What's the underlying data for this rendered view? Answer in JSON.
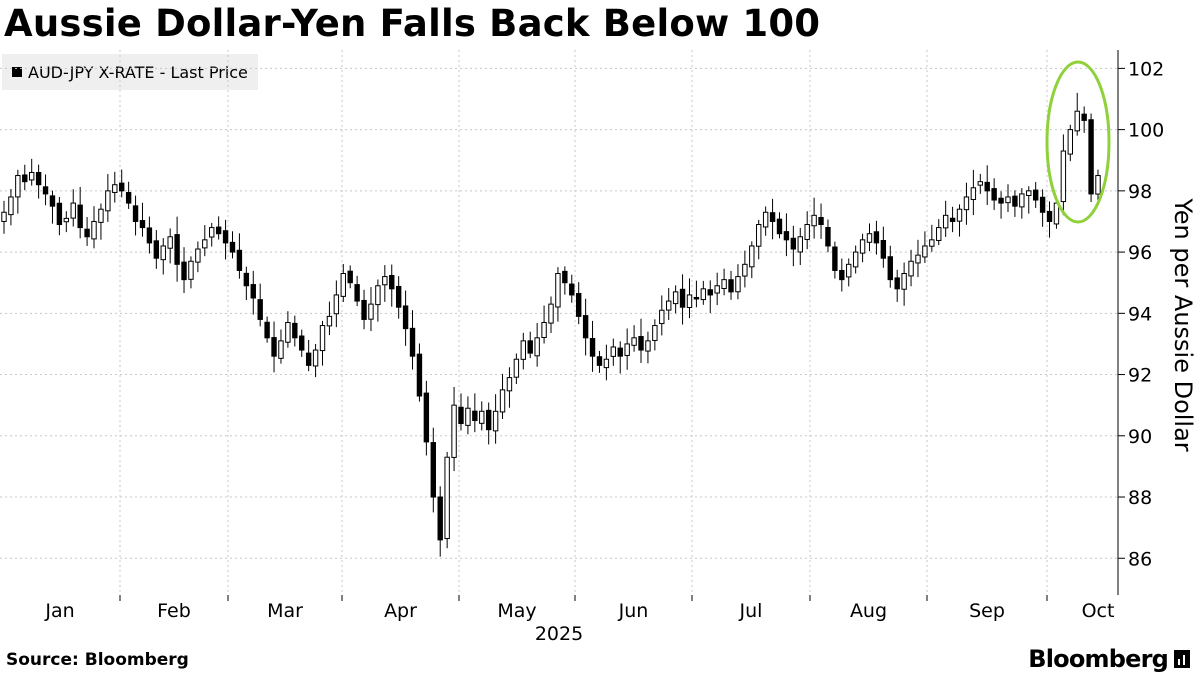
{
  "chart_data": {
    "type": "candlestick",
    "title": "Aussie Dollar-Yen Falls Back Below 100",
    "legend": [
      "AUD-JPY X-RATE - Last Price"
    ],
    "ylabel": "Yen per Aussie Dollar",
    "ylim": [
      84.8,
      102.6
    ],
    "yticks": [
      86,
      88,
      90,
      92,
      94,
      96,
      98,
      100,
      102
    ],
    "xticks": [
      "Jan",
      "Feb",
      "Mar",
      "Apr",
      "May",
      "Jun",
      "Jul",
      "Aug",
      "Sep",
      "Oct"
    ],
    "xsublabel": "2025",
    "grid": true,
    "axis_position": "right",
    "annotation": "green ellipse around late-September / early-October spike",
    "series_name": "AUD-JPY X-RATE - Last Price",
    "closes": [
      97.3,
      97.8,
      98.5,
      98.3,
      98.6,
      98.2,
      97.9,
      97.5,
      96.9,
      97.1,
      97.6,
      96.8,
      96.5,
      97.0,
      97.4,
      98.0,
      98.2,
      98.0,
      97.6,
      97.0,
      96.8,
      96.3,
      95.8,
      96.2,
      96.5,
      95.6,
      95.1,
      95.7,
      96.1,
      96.4,
      96.8,
      96.6,
      96.3,
      96.0,
      95.4,
      94.9,
      94.5,
      93.8,
      93.2,
      92.6,
      93.1,
      93.7,
      93.2,
      92.8,
      92.3,
      92.8,
      93.6,
      93.9,
      94.6,
      95.3,
      95.0,
      94.4,
      93.8,
      94.3,
      94.9,
      95.2,
      94.8,
      94.2,
      93.5,
      92.6,
      91.3,
      89.8,
      88.0,
      86.6,
      89.3,
      91.0,
      90.4,
      90.9,
      90.5,
      90.8,
      90.2,
      90.8,
      91.5,
      91.9,
      92.5,
      93.1,
      92.7,
      93.2,
      93.7,
      94.3,
      95.3,
      95.0,
      94.6,
      93.9,
      93.2,
      92.6,
      92.3,
      92.5,
      92.9,
      92.6,
      93.0,
      93.2,
      92.8,
      93.1,
      93.6,
      94.1,
      94.4,
      94.7,
      94.2,
      94.6,
      94.5,
      94.8,
      94.6,
      94.9,
      95.1,
      94.7,
      95.2,
      95.6,
      96.2,
      96.9,
      97.3,
      97.0,
      96.6,
      96.4,
      96.1,
      96.5,
      96.9,
      97.2,
      96.9,
      96.2,
      95.4,
      95.1,
      95.6,
      96.0,
      96.4,
      96.6,
      96.3,
      95.8,
      95.1,
      94.8,
      95.3,
      95.7,
      95.9,
      96.2,
      96.4,
      96.8,
      97.2,
      97.0,
      97.4,
      97.8,
      98.1,
      98.3,
      98.0,
      97.7,
      97.6,
      97.8,
      97.5,
      97.9,
      98.0,
      97.7,
      97.3,
      97.0,
      97.6,
      99.3,
      100.0,
      100.6,
      100.3,
      97.9,
      98.5
    ]
  },
  "footer": {
    "source": "Source: Bloomberg",
    "brand": "Bloomberg"
  },
  "colors": {
    "annotation": "#8fd13a",
    "candle": "#000000",
    "grid": "#c8c8c8"
  }
}
